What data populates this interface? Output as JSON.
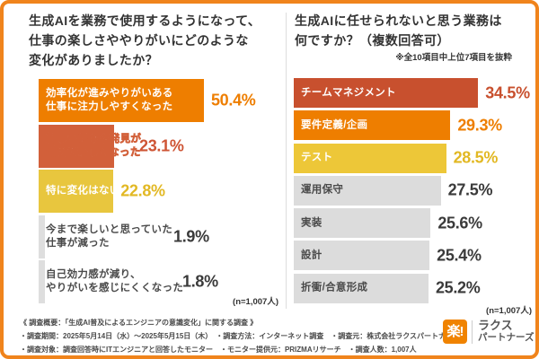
{
  "frame": {
    "border_color": "#F0841C"
  },
  "chart_data": [
    {
      "type": "bar",
      "orientation": "horizontal",
      "title": "生成AIを業務で使用するようになって、\n仕事の楽しさややりがいにどのような\n変化がありましたか？",
      "unit": "%",
      "xlim": [
        0,
        55
      ],
      "n_label": "(n=1,007人)",
      "categories": [
        "効率化が進みやりがいある仕事に注力しやすくなった",
        "新しい学びや発見が増えて楽しくなった",
        "特に変化はない",
        "今まで楽しいと思っていた仕事が減った",
        "自己効力感が減り、やりがいを感じにくくなった"
      ],
      "values": [
        50.4,
        23.1,
        22.8,
        1.9,
        1.8
      ],
      "items": [
        {
          "label": "効率化が進みやりがいある\n仕事に注力しやすくなった",
          "value": 50.4,
          "bar_color": "#EE7E00",
          "label_color": "#FFFFFF",
          "pct_color": "#EE7E00"
        },
        {
          "label": "新しい学びや発見が\n増えて楽しくなった",
          "value": 23.1,
          "bar_color": "#D2603A",
          "label_color": "#FFFFFF",
          "pct_color": "#CE5434"
        },
        {
          "label": "特に変化はない",
          "value": 22.8,
          "bar_color": "#E8C63E",
          "label_color": "#FFFFFF",
          "pct_color": "#E2B823"
        },
        {
          "label": "今まで楽しいと思っていた\n仕事が減った",
          "value": 1.9,
          "bar_color": "#DEDEDE",
          "label_color": "#4A4A4A",
          "pct_color": "#3A3A3A"
        },
        {
          "label": "自己効力感が減り、\nやりがいを感じにくくなった",
          "value": 1.8,
          "bar_color": "#DEDEDE",
          "label_color": "#4A4A4A",
          "pct_color": "#3A3A3A"
        }
      ]
    },
    {
      "type": "bar",
      "orientation": "horizontal",
      "title": "生成AIに任せられないと思う業務は\n何ですか？（複数回答可）",
      "note": "※全10項目中上位7項目を抜粋",
      "unit": "%",
      "xlim": [
        0,
        40
      ],
      "n_label": "(n=1,007人)",
      "categories": [
        "チームマネジメント",
        "要件定義/企画",
        "テスト",
        "運用保守",
        "実装",
        "設計",
        "折衝/合意形成"
      ],
      "values": [
        34.5,
        29.3,
        28.5,
        27.5,
        25.6,
        25.4,
        25.2
      ],
      "items": [
        {
          "label": "チームマネジメント",
          "value": 34.5,
          "bar_color": "#C8502E",
          "label_color": "#FFFFFF",
          "pct_color": "#C8502E"
        },
        {
          "label": "要件定義/企画",
          "value": 29.3,
          "bar_color": "#EE7E00",
          "label_color": "#FFFFFF",
          "pct_color": "#EE7E00"
        },
        {
          "label": "テスト",
          "value": 28.5,
          "bar_color": "#EDC738",
          "label_color": "#FFFFFF",
          "pct_color": "#E2B823"
        },
        {
          "label": "運用保守",
          "value": 27.5,
          "bar_color": "#DCDCDC",
          "label_color": "#4A4A4A",
          "pct_color": "#3A3A3A"
        },
        {
          "label": "実装",
          "value": 25.6,
          "bar_color": "#DCDCDC",
          "label_color": "#4A4A4A",
          "pct_color": "#3A3A3A"
        },
        {
          "label": "設計",
          "value": 25.4,
          "bar_color": "#DCDCDC",
          "label_color": "#4A4A4A",
          "pct_color": "#3A3A3A"
        },
        {
          "label": "折衝/合意形成",
          "value": 25.2,
          "bar_color": "#DCDCDC",
          "label_color": "#4A4A4A",
          "pct_color": "#3A3A3A"
        }
      ]
    }
  ],
  "footer": {
    "lines": [
      "《 調査概要：「生成AI普及によるエンジニアの意識変化」に関する調査 》",
      "・調査期間：2025年5月14日（水）〜2025年5月15日（木）　・調査方法：インターネット調査　・調査元：株式会社ラクスパートナーズ",
      "・調査対象：調査回答時にITエンジニアと回答したモニター　・モニター提供元：PRIZMAリサーチ　・調査人数：1,007人"
    ]
  },
  "logo": {
    "mark": "楽!",
    "name_line1": "ラクス",
    "name_line2": "パートナーズ",
    "brand_color": "#F08300"
  }
}
